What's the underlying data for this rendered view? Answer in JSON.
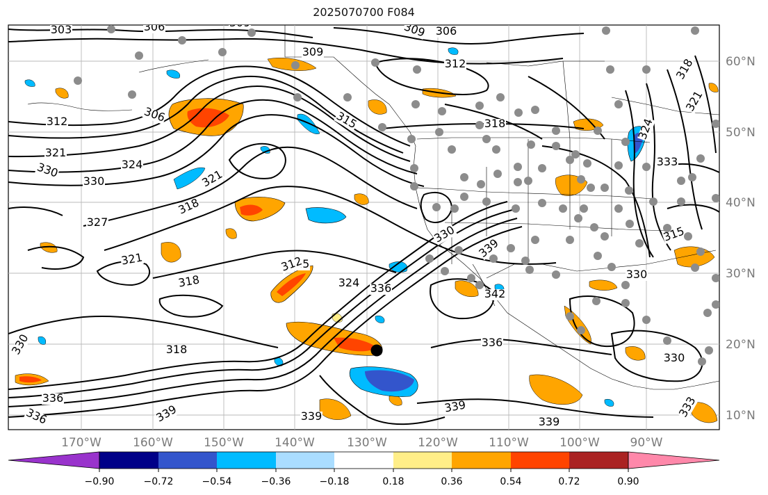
{
  "title": "2025070700 F084",
  "map": {
    "lat_labels": [
      "60°N",
      "50°N",
      "40°N",
      "30°N",
      "20°N",
      "10°N"
    ],
    "lon_labels": [
      "170°W",
      "160°W",
      "150°W",
      "140°W",
      "130°W",
      "120°W",
      "110°W",
      "100°W",
      "90°W"
    ],
    "contour_labels": [
      "303",
      "306",
      "309",
      "309",
      "306",
      "309",
      "312",
      "306",
      "312",
      "315",
      "318",
      "318",
      "321",
      "324",
      "330",
      "330",
      "321",
      "318",
      "327",
      "321",
      "318",
      "315",
      "324",
      "336",
      "330",
      "339",
      "342",
      "336",
      "330",
      "318",
      "330",
      "336",
      "336",
      "339",
      "339",
      "339",
      "339",
      "333",
      "315",
      "312",
      "321",
      "324",
      "333",
      "330"
    ],
    "colors": {
      "ocean_bg": "#ffffff",
      "gridline": "#b0b0b0",
      "contour": "#000000",
      "station_dot": "#8c8c8c",
      "marker": "#000000"
    }
  },
  "colorbar": {
    "ticks": [
      "−0.90",
      "−0.72",
      "−0.54",
      "−0.36",
      "−0.18",
      "0.18",
      "0.36",
      "0.54",
      "0.72",
      "0.90"
    ],
    "bins": [
      "#9933cc",
      "#000088",
      "#3355cc",
      "#00bbff",
      "#aaddff",
      "#ffffff",
      "#ffee88",
      "#ffa500",
      "#ff4400",
      "#aa2222",
      "#ff88aa",
      "#ff88aa"
    ]
  }
}
